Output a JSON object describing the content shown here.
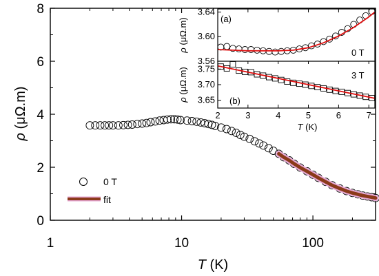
{
  "chart_data": [
    {
      "type": "scatter",
      "xscale": "log",
      "xlim": [
        1,
        300
      ],
      "ylim": [
        0,
        8
      ],
      "xlabel_symbol": "T",
      "xlabel_unit": " (K)",
      "ylabel_symbol": "ρ",
      "ylabel_unit": " (μΩ.m)",
      "xticks": [
        1,
        10,
        100
      ],
      "xticklabels": [
        "1",
        "10",
        "100"
      ],
      "yticks": [
        0,
        2,
        4,
        6,
        8
      ],
      "yticklabels": [
        "0",
        "2",
        "4",
        "6",
        "8"
      ],
      "legend": {
        "placement": "bottom-left",
        "entries": [
          "0 T",
          "fit"
        ]
      },
      "series": [
        {
          "name": "0 T",
          "kind": "scatter",
          "marker": "open-circle",
          "color": "#000000",
          "x": [
            2.0,
            2.2,
            2.4,
            2.6,
            2.8,
            3.0,
            3.3,
            3.6,
            3.9,
            4.2,
            4.6,
            5.0,
            5.4,
            5.8,
            6.3,
            6.8,
            7.3,
            7.8,
            8.3,
            8.8,
            9.3,
            9.8,
            11,
            12,
            13,
            14,
            15,
            16,
            17,
            18,
            20,
            22,
            24,
            26,
            28,
            30,
            33,
            36,
            39,
            42,
            46,
            50,
            55,
            60,
            66,
            72,
            80,
            90,
            100,
            110,
            125,
            140,
            160,
            180,
            200,
            220,
            240,
            260,
            280,
            300
          ],
          "y": [
            3.58,
            3.58,
            3.58,
            3.58,
            3.58,
            3.58,
            3.58,
            3.59,
            3.6,
            3.61,
            3.63,
            3.65,
            3.67,
            3.7,
            3.73,
            3.76,
            3.78,
            3.8,
            3.81,
            3.81,
            3.8,
            3.78,
            3.76,
            3.74,
            3.72,
            3.69,
            3.66,
            3.63,
            3.6,
            3.56,
            3.5,
            3.44,
            3.37,
            3.3,
            3.22,
            3.15,
            3.07,
            2.98,
            2.9,
            2.82,
            2.72,
            2.62,
            2.51,
            2.38,
            2.26,
            2.13,
            1.99,
            1.85,
            1.72,
            1.6,
            1.45,
            1.32,
            1.2,
            1.1,
            1.03,
            0.98,
            0.93,
            0.9,
            0.87,
            0.84
          ]
        },
        {
          "name": "fit",
          "kind": "line",
          "color": "#8b3a1a",
          "x": [
            55,
            60,
            66,
            72,
            80,
            90,
            100,
            110,
            125,
            140,
            160,
            180,
            200,
            220,
            240,
            260,
            280,
            300
          ],
          "y": [
            2.51,
            2.38,
            2.26,
            2.13,
            1.99,
            1.85,
            1.72,
            1.6,
            1.45,
            1.32,
            1.2,
            1.1,
            1.03,
            0.98,
            0.93,
            0.9,
            0.87,
            0.84
          ]
        }
      ]
    },
    {
      "type": "scatter",
      "panel_label": "(a)",
      "field_label": "0 T",
      "xlim": [
        2,
        7.2
      ],
      "ylim": [
        3.56,
        3.645
      ],
      "ylabel_symbol": "ρ",
      "ylabel_unit": " (μΩ.m)",
      "yticks": [
        3.56,
        3.6,
        3.64
      ],
      "yticklabels": [
        "3.56",
        "3.60",
        "3.64"
      ],
      "series": [
        {
          "name": "0 T",
          "kind": "scatter",
          "marker": "open-circle",
          "color": "#000000",
          "x": [
            2.1,
            2.3,
            2.5,
            2.7,
            2.9,
            3.1,
            3.3,
            3.5,
            3.7,
            3.9,
            4.1,
            4.3,
            4.5,
            4.7,
            4.9,
            5.1,
            5.3,
            5.5,
            5.7,
            5.9,
            6.1,
            6.3,
            6.5,
            6.7,
            6.9,
            7.1
          ],
          "y": [
            3.583,
            3.584,
            3.581,
            3.58,
            3.579,
            3.579,
            3.578,
            3.577,
            3.576,
            3.575,
            3.576,
            3.577,
            3.578,
            3.58,
            3.582,
            3.585,
            3.588,
            3.592,
            3.596,
            3.601,
            3.607,
            3.613,
            3.62,
            3.627,
            3.634,
            3.641
          ]
        },
        {
          "name": "fit",
          "kind": "line",
          "color": "#e01010",
          "x": [
            2,
            2.5,
            3,
            3.5,
            4,
            4.5,
            5,
            5.5,
            6,
            6.5,
            7,
            7.2
          ],
          "y": [
            3.579,
            3.578,
            3.577,
            3.577,
            3.577,
            3.578,
            3.582,
            3.59,
            3.601,
            3.615,
            3.632,
            3.64
          ]
        }
      ]
    },
    {
      "type": "scatter",
      "panel_label": "(b)",
      "field_label": "3 T",
      "xlim": [
        2,
        7.2
      ],
      "ylim": [
        3.625,
        3.775
      ],
      "xlabel_symbol": "T",
      "xlabel_unit": " (K)",
      "ylabel_symbol": "ρ",
      "ylabel_unit": " (μΩ.m)",
      "xticks": [
        2,
        3,
        4,
        5,
        6,
        7
      ],
      "xticklabels": [
        "2",
        "3",
        "4",
        "5",
        "6",
        "7"
      ],
      "yticks": [
        3.65,
        3.7,
        3.75
      ],
      "yticklabels": [
        "3.65",
        "3.70",
        "3.75"
      ],
      "series": [
        {
          "name": "3 T",
          "kind": "scatter",
          "marker": "open-square",
          "color": "#000000",
          "x": [
            2.1,
            2.3,
            2.5,
            2.7,
            2.9,
            3.1,
            3.3,
            3.5,
            3.7,
            3.9,
            4.1,
            4.3,
            4.5,
            4.7,
            4.9,
            5.1,
            5.3,
            5.5,
            5.7,
            5.9,
            6.1,
            6.3,
            6.5,
            6.7,
            6.9,
            7.1
          ],
          "y": [
            3.758,
            3.752,
            3.765,
            3.745,
            3.741,
            3.74,
            3.733,
            3.729,
            3.724,
            3.72,
            3.715,
            3.71,
            3.706,
            3.703,
            3.7,
            3.696,
            3.692,
            3.688,
            3.684,
            3.68,
            3.677,
            3.673,
            3.669,
            3.665,
            3.661,
            3.657
          ]
        },
        {
          "name": "fit",
          "kind": "line",
          "color": "#e01010",
          "x": [
            2,
            7.2
          ],
          "y": [
            3.76,
            3.656
          ]
        }
      ]
    }
  ]
}
